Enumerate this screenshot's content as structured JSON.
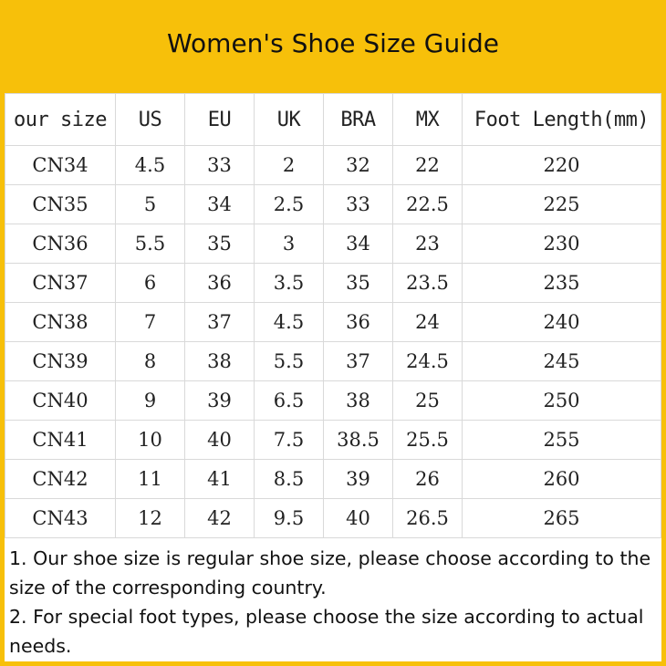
{
  "title": "Women's Shoe Size Guide",
  "table": {
    "headers": [
      "our size",
      "US",
      "EU",
      "UK",
      "BRA",
      "MX",
      "Foot Length(mm)"
    ],
    "rows": [
      [
        "CN34",
        "4.5",
        "33",
        "2",
        "32",
        "22",
        "220"
      ],
      [
        "CN35",
        "5",
        "34",
        "2.5",
        "33",
        "22.5",
        "225"
      ],
      [
        "CN36",
        "5.5",
        "35",
        "3",
        "34",
        "23",
        "230"
      ],
      [
        "CN37",
        "6",
        "36",
        "3.5",
        "35",
        "23.5",
        "235"
      ],
      [
        "CN38",
        "7",
        "37",
        "4.5",
        "36",
        "24",
        "240"
      ],
      [
        "CN39",
        "8",
        "38",
        "5.5",
        "37",
        "24.5",
        "245"
      ],
      [
        "CN40",
        "9",
        "39",
        "6.5",
        "38",
        "25",
        "250"
      ],
      [
        "CN41",
        "10",
        "40",
        "7.5",
        "38.5",
        "25.5",
        "255"
      ],
      [
        "CN42",
        "11",
        "41",
        "8.5",
        "39",
        "26",
        "260"
      ],
      [
        "CN43",
        "12",
        "42",
        "9.5",
        "40",
        "26.5",
        "265"
      ]
    ]
  },
  "notes": [
    "1. Our shoe size is regular shoe size, please choose according to the size of the corresponding country.",
    "2. For special foot types, please choose the size according to actual needs."
  ],
  "colors": {
    "accent": "#f7c00a",
    "grid": "#d9d9d9"
  }
}
